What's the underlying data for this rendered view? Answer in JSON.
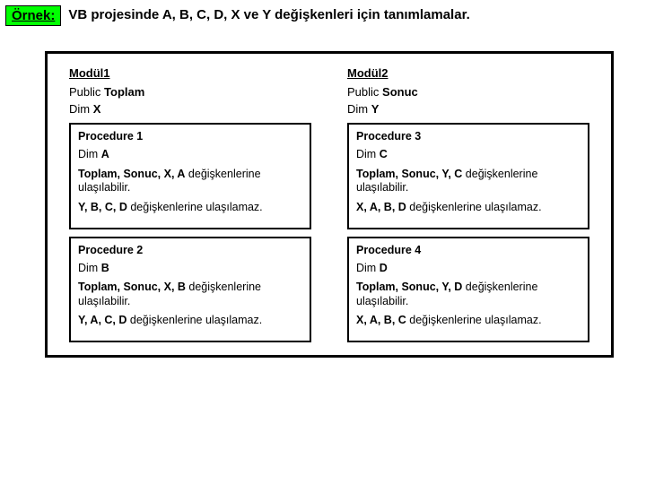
{
  "colors": {
    "highlight_bg": "#00ff00",
    "border": "#000000",
    "page_bg": "#ffffff",
    "text": "#000000"
  },
  "typography": {
    "family": "Arial",
    "title_size_pt": 15,
    "body_size_pt": 13,
    "proc_size_pt": 12.5
  },
  "header": {
    "ornek_label": "Örnek:",
    "title": "VB projesinde A, B, C, D, X ve Y değişkenleri için tanımlamalar."
  },
  "modules": [
    {
      "name": "Modül1",
      "public_kw": "Public ",
      "public_var": "Toplam",
      "dim_kw": "Dim ",
      "dim_var": "X",
      "procedures": [
        {
          "title": "Procedure 1",
          "dim_kw": "Dim ",
          "dim_var": "A",
          "reach_bold": "Toplam, Sonuc, X, A",
          "reach_rest": " değişkenlerine ulaşılabilir.",
          "unreach_bold": "Y, B, C, D",
          "unreach_rest": " değişkenlerine ulaşılamaz."
        },
        {
          "title": "Procedure 2",
          "dim_kw": "Dim ",
          "dim_var": "B",
          "reach_bold": "Toplam, Sonuc, X, B",
          "reach_rest": " değişkenlerine ulaşılabilir.",
          "unreach_bold": "Y, A, C, D",
          "unreach_rest": " değişkenlerine ulaşılamaz."
        }
      ]
    },
    {
      "name": "Modül2",
      "public_kw": "Public ",
      "public_var": "Sonuc",
      "dim_kw": "Dim ",
      "dim_var": "Y",
      "procedures": [
        {
          "title": "Procedure 3",
          "dim_kw": "Dim ",
          "dim_var": "C",
          "reach_bold": "Toplam, Sonuc, Y, C",
          "reach_rest": " değişkenlerine ulaşılabilir.",
          "unreach_bold": "X, A, B, D",
          "unreach_rest": " değişkenlerine ulaşılamaz."
        },
        {
          "title": "Procedure 4",
          "dim_kw": "Dim ",
          "dim_var": "D",
          "reach_bold": "Toplam, Sonuc, Y, D",
          "reach_rest": " değişkenlerine ulaşılabilir.",
          "unreach_bold": "X, A, B, C",
          "unreach_rest": " değişkenlerine ulaşılamaz."
        }
      ]
    }
  ]
}
